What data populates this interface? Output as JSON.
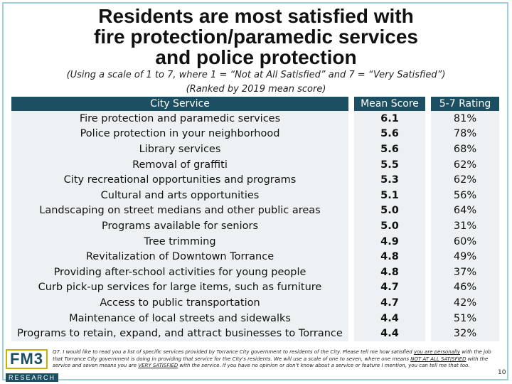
{
  "title": {
    "line1": "Residents are most satisfied with",
    "line2": "fire protection/paramedic services",
    "line3": "and police protection"
  },
  "subtitle": "(Using a scale of 1 to 7, where 1 = “Not at All Satisfied” and 7 = “Very Satisfied”)",
  "subtitle2": "(Ranked by 2019 mean score)",
  "table": {
    "headers": {
      "service": "City Service",
      "mean": "Mean Score",
      "rating": "5-7 Rating"
    },
    "rows": [
      {
        "service": "Fire protection and paramedic services",
        "mean": "6.1",
        "rating": "81%"
      },
      {
        "service": "Police protection in your neighborhood",
        "mean": "5.6",
        "rating": "78%"
      },
      {
        "service": "Library services",
        "mean": "5.6",
        "rating": "68%"
      },
      {
        "service": "Removal of graffiti",
        "mean": "5.5",
        "rating": "62%"
      },
      {
        "service": "City recreational opportunities and programs",
        "mean": "5.3",
        "rating": "62%"
      },
      {
        "service": "Cultural and arts opportunities",
        "mean": "5.1",
        "rating": "56%"
      },
      {
        "service": "Landscaping on street medians and other public areas",
        "mean": "5.0",
        "rating": "64%"
      },
      {
        "service": "Programs available for seniors",
        "mean": "5.0",
        "rating": "31%"
      },
      {
        "service": "Tree trimming",
        "mean": "4.9",
        "rating": "60%"
      },
      {
        "service": "Revitalization of Downtown Torrance",
        "mean": "4.8",
        "rating": "49%"
      },
      {
        "service": "Providing after-school activities for young people",
        "mean": "4.8",
        "rating": "37%"
      },
      {
        "service": "Curb pick-up services for large items, such as furniture",
        "mean": "4.7",
        "rating": "46%"
      },
      {
        "service": "Access to public transportation",
        "mean": "4.7",
        "rating": "42%"
      },
      {
        "service": "Maintenance of local streets and sidewalks",
        "mean": "4.4",
        "rating": "51%"
      },
      {
        "service": "Programs to retain, expand, and attract businesses to Torrance",
        "mean": "4.4",
        "rating": "32%"
      }
    ]
  },
  "logo": {
    "name": "FM3",
    "sub": "RESEARCH"
  },
  "footnote": {
    "part1": "Q7. I would like to read you a list of specific services provided by Torrance City government to residents of the City. Please tell me how satisfied ",
    "u1": "you are personally",
    "part2": " with the job that Torrance City government is doing in providing that service for the City's residents. We will use a scale of one to seven, where one means ",
    "u2": "NOT AT ALL SATISFIED",
    "part3": " with the service and seven means you are ",
    "u3": "VERY SATISFIED",
    "part4": " with the service. If you have no opinion or don't know about a service or feature I mention, you can tell me that too."
  },
  "page_number": "10",
  "colors": {
    "header_bg": "#1d4f63",
    "row_bg": "#eef1f3",
    "frame": "#9fd0d8"
  }
}
